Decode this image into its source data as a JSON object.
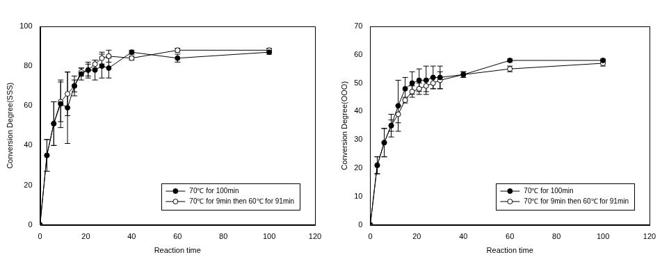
{
  "chart_data": [
    {
      "type": "line",
      "x_label": "Reaction time",
      "y_label": "Conversion Degree(SSS)",
      "xlim": [
        0,
        120
      ],
      "xticks": [
        0,
        20,
        40,
        60,
        80,
        100,
        120
      ],
      "ylim": [
        0,
        100
      ],
      "yticks": [
        0,
        20,
        40,
        60,
        80,
        100
      ],
      "grid": false,
      "legend": "lower right",
      "series": [
        {
          "name": "70℃ for 100min",
          "color": "#000000",
          "marker": "circle",
          "line_style": "solid",
          "x": [
            0,
            3,
            6,
            9,
            12,
            15,
            18,
            21,
            24,
            27,
            30,
            40,
            60,
            100
          ],
          "values": [
            0,
            35,
            51,
            61,
            59,
            70,
            76,
            78,
            78,
            80,
            79,
            87,
            84,
            87
          ],
          "errors": [
            0,
            8,
            11,
            12,
            18,
            5,
            3,
            3,
            5,
            6,
            5,
            1,
            2,
            1
          ]
        },
        {
          "name": "70℃ for 9min then 60℃ for 91min",
          "color": "#000000",
          "marker": "open_circle",
          "line_style": "solid",
          "x": [
            0,
            3,
            6,
            9,
            12,
            15,
            18,
            21,
            24,
            27,
            30,
            40,
            60,
            100
          ],
          "values": [
            0,
            35,
            51,
            62,
            66,
            70,
            77,
            78,
            81,
            84,
            85,
            84,
            88,
            88
          ],
          "errors": [
            0,
            8,
            11,
            10,
            11,
            3,
            2,
            4,
            2,
            3,
            3,
            1,
            1,
            1
          ]
        }
      ]
    },
    {
      "type": "line",
      "x_label": "Reaction time",
      "y_label": "Conversion Degree(OOO)",
      "xlim": [
        0,
        120
      ],
      "xticks": [
        0,
        20,
        40,
        60,
        80,
        100,
        120
      ],
      "ylim": [
        0,
        70
      ],
      "yticks": [
        0,
        10,
        20,
        30,
        40,
        50,
        60,
        70
      ],
      "grid": false,
      "legend": "lower right",
      "series": [
        {
          "name": "70℃ for 100min",
          "color": "#000000",
          "marker": "circle",
          "line_style": "solid",
          "x": [
            0,
            3,
            6,
            9,
            12,
            15,
            18,
            21,
            24,
            27,
            30,
            40,
            60,
            100
          ],
          "values": [
            0,
            21,
            29,
            35,
            42,
            48,
            50,
            51,
            51,
            52,
            52,
            53,
            58,
            58
          ],
          "errors": [
            0,
            3,
            5,
            4,
            9,
            4,
            4,
            4,
            5,
            4,
            4,
            1,
            0.5,
            0.5
          ]
        },
        {
          "name": "70℃ for 9min then 60℃ for 91min",
          "color": "#000000",
          "marker": "open_circle",
          "line_style": "solid",
          "x": [
            0,
            3,
            6,
            9,
            12,
            15,
            18,
            21,
            24,
            27,
            30,
            40,
            60,
            100
          ],
          "values": [
            0,
            21,
            29,
            35,
            39,
            44,
            47,
            48,
            49,
            50,
            51,
            53,
            55,
            57
          ],
          "errors": [
            0,
            3,
            5,
            2,
            3,
            1,
            2,
            2,
            2,
            2,
            3,
            1,
            1,
            1
          ]
        }
      ]
    }
  ]
}
